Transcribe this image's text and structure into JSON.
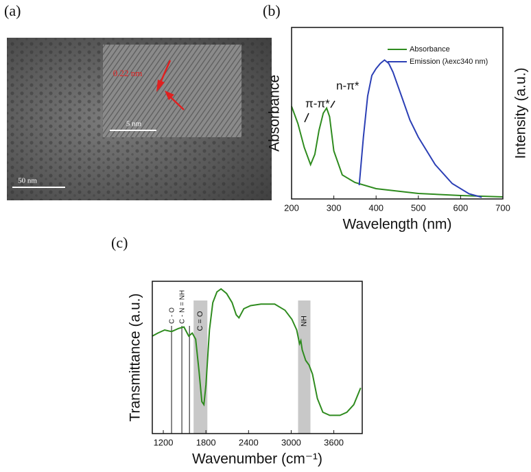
{
  "panel_labels": [
    "(a)",
    "(b)",
    "(c)"
  ],
  "micrograph": {
    "scale_bar": "50 nm",
    "inset_scale_bar": "5 nm",
    "lattice_spacing": "0.22 nm"
  },
  "chart_data": [
    {
      "type": "line",
      "xlabel": "Wavelength (nm)",
      "ylabel": "Absorbance",
      "y2label": "Intensity (a.u.)",
      "xlim": [
        200,
        700
      ],
      "xticks": [
        200,
        300,
        400,
        500,
        600,
        700
      ],
      "ylim": [
        0,
        1
      ],
      "annotations": [
        "π-π*",
        "n-π*"
      ],
      "series": [
        {
          "name": "Absorbance",
          "color": "#2e8b1e",
          "x": [
            200,
            215,
            230,
            245,
            255,
            265,
            275,
            283,
            290,
            300,
            320,
            350,
            400,
            500,
            600,
            700
          ],
          "values": [
            0.54,
            0.44,
            0.3,
            0.2,
            0.26,
            0.4,
            0.5,
            0.53,
            0.48,
            0.28,
            0.14,
            0.096,
            0.06,
            0.032,
            0.02,
            0.012
          ]
        },
        {
          "name": "Emission (λexc340 nm)",
          "color": "#2b3fb5",
          "x": [
            360,
            370,
            380,
            390,
            400,
            410,
            420,
            430,
            440,
            460,
            480,
            500,
            540,
            580,
            620,
            650
          ],
          "values": [
            0.08,
            0.36,
            0.6,
            0.72,
            0.76,
            0.79,
            0.81,
            0.79,
            0.74,
            0.6,
            0.46,
            0.36,
            0.2,
            0.09,
            0.03,
            0.01
          ]
        }
      ]
    },
    {
      "type": "line",
      "xlabel": "Wavenumber (cm⁻¹)",
      "ylabel": "Transmittance (a.u.)",
      "xlim": [
        1045,
        4000
      ],
      "xticks": [
        1200,
        1800,
        2400,
        3000,
        3600
      ],
      "ylim": [
        0,
        1
      ],
      "bands": [
        {
          "label": "C = O",
          "range": [
            1626,
            1820
          ]
        },
        {
          "label": "NH",
          "range": [
            3097,
            3271
          ]
        }
      ],
      "markers": [
        {
          "label": "C - O",
          "lines": [
            1316
          ]
        },
        {
          "label": "C - N = NH",
          "lines": [
            1461,
            1568
          ]
        }
      ],
      "series": [
        {
          "color": "#2e8b1e",
          "x": [
            1045,
            1123,
            1219,
            1316,
            1413,
            1490,
            1558,
            1607,
            1655,
            1703,
            1742,
            1771,
            1800,
            1849,
            1897,
            1955,
            2013,
            2091,
            2168,
            2226,
            2265,
            2333,
            2429,
            2575,
            2768,
            2913,
            3010,
            3078,
            3117,
            3136,
            3155,
            3204,
            3252,
            3300,
            3368,
            3446,
            3542,
            3687,
            3784,
            3881,
            3978
          ],
          "values": [
            0.64,
            0.66,
            0.68,
            0.67,
            0.69,
            0.7,
            0.64,
            0.66,
            0.62,
            0.41,
            0.21,
            0.19,
            0.32,
            0.68,
            0.86,
            0.93,
            0.95,
            0.92,
            0.86,
            0.78,
            0.76,
            0.82,
            0.84,
            0.85,
            0.85,
            0.81,
            0.75,
            0.68,
            0.59,
            0.61,
            0.55,
            0.48,
            0.45,
            0.39,
            0.23,
            0.14,
            0.12,
            0.12,
            0.14,
            0.19,
            0.3
          ]
        }
      ]
    }
  ]
}
